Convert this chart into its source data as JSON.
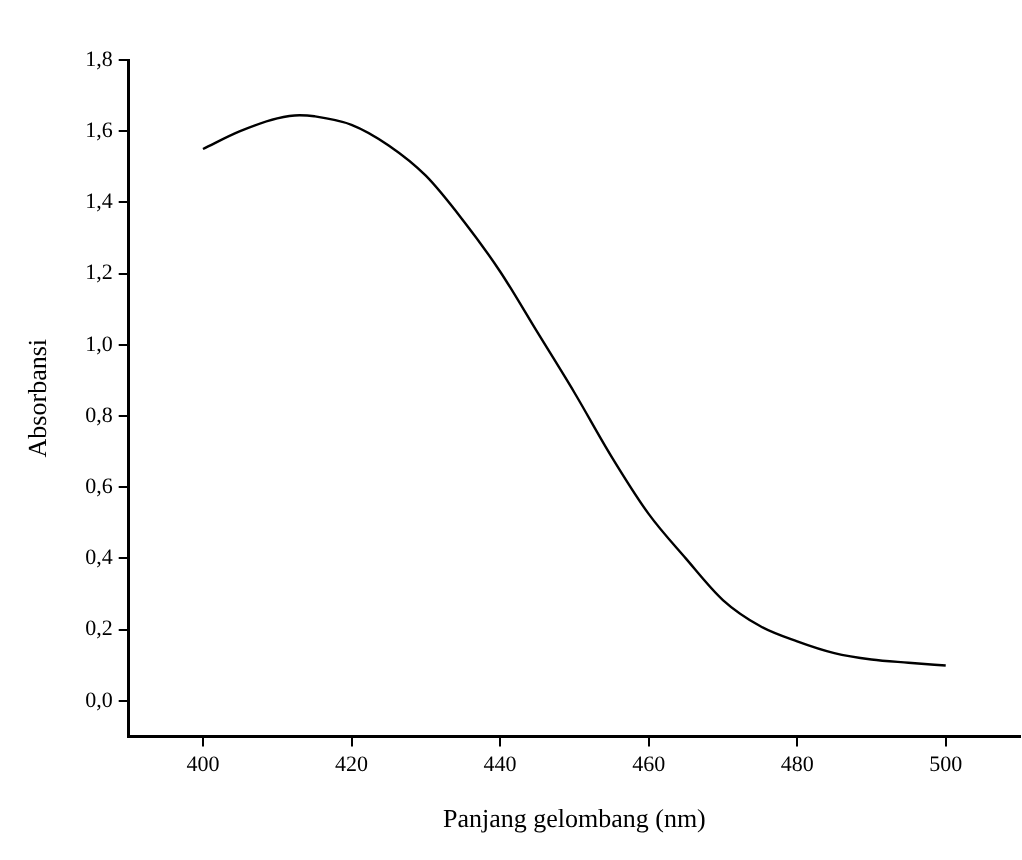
{
  "chart_data": {
    "type": "line",
    "xlabel": "Panjang gelombang (nm)",
    "ylabel": "Absorbansi",
    "x": [
      400,
      405,
      410,
      413,
      415,
      420,
      425,
      430,
      435,
      440,
      445,
      450,
      455,
      460,
      465,
      470,
      475,
      480,
      485,
      490,
      495,
      500
    ],
    "series": [
      {
        "color": "#000000",
        "values": [
          1.55,
          1.6,
          1.636,
          1.645,
          1.642,
          1.618,
          1.56,
          1.475,
          1.35,
          1.206,
          1.036,
          0.866,
          0.686,
          0.525,
          0.4,
          0.283,
          0.21,
          0.167,
          0.134,
          0.116,
          0.107,
          0.099
        ]
      }
    ],
    "xlim": [
      390,
      510
    ],
    "xticks": [
      400,
      420,
      440,
      460,
      480,
      500
    ],
    "ylim": [
      -0.1,
      1.8
    ],
    "yticks": [
      {
        "value": 0,
        "label": "0,0"
      },
      {
        "value": 0.2,
        "label": "0,2"
      },
      {
        "value": 0.4,
        "label": "0,4"
      },
      {
        "value": 0.6,
        "label": "0,6"
      },
      {
        "value": 0.8,
        "label": "0,8"
      },
      {
        "value": 1,
        "label": "1,0"
      },
      {
        "value": 1.2,
        "label": "1,2"
      },
      {
        "value": 1.4,
        "label": "1,4"
      },
      {
        "value": 1.6,
        "label": "1,6"
      },
      {
        "value": 1.8,
        "label": "1,8"
      }
    ],
    "grid": false,
    "legend": false,
    "marker": "none",
    "line_style": "solid"
  }
}
